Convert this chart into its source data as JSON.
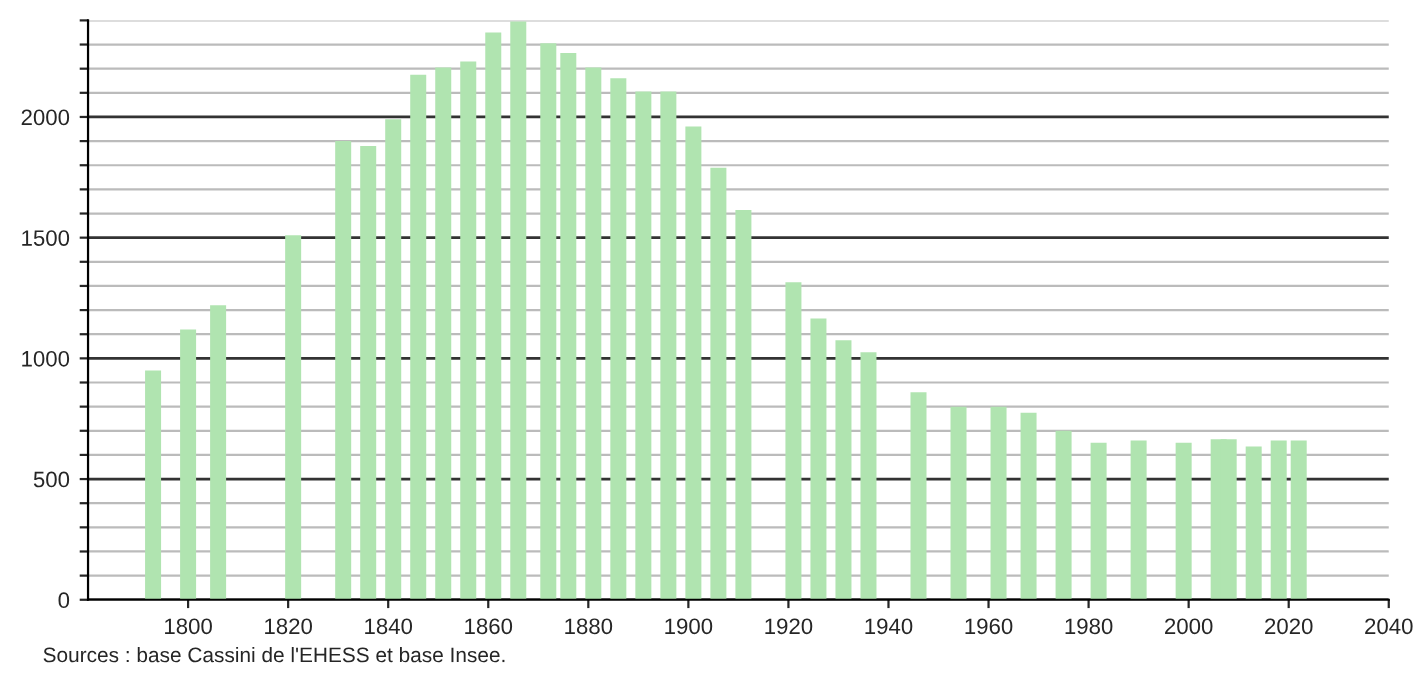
{
  "chart_data": {
    "type": "bar",
    "x": [
      1793,
      1800,
      1806,
      1821,
      1831,
      1836,
      1841,
      1846,
      1851,
      1856,
      1861,
      1866,
      1872,
      1876,
      1881,
      1886,
      1891,
      1896,
      1901,
      1906,
      1911,
      1921,
      1926,
      1931,
      1936,
      1946,
      1954,
      1962,
      1968,
      1975,
      1982,
      1990,
      1999,
      2006,
      2008,
      2013,
      2018,
      2022
    ],
    "series": [
      {
        "color": "#b0e4b0",
        "values": [
          950,
          1120,
          1220,
          1510,
          1900,
          1880,
          1990,
          2175,
          2205,
          2230,
          2350,
          2395,
          2305,
          2265,
          2205,
          2160,
          2105,
          2105,
          1960,
          1790,
          1615,
          1315,
          1165,
          1075,
          1025,
          860,
          800,
          800,
          775,
          700,
          650,
          660,
          650,
          665,
          665,
          635,
          660,
          660
        ]
      }
    ],
    "xlim": [
      1780,
      2040
    ],
    "xticks": [
      1800,
      1820,
      1840,
      1860,
      1880,
      1900,
      1920,
      1940,
      1960,
      1980,
      2000,
      2020,
      2040
    ],
    "ylim": [
      0,
      2400
    ],
    "yticks": [
      0,
      {
        "value": 100,
        "label": null
      },
      {
        "value": 200,
        "label": null
      },
      {
        "value": 300,
        "label": null
      },
      {
        "value": 400,
        "label": null
      },
      500,
      {
        "value": 600,
        "label": null
      },
      {
        "value": 700,
        "label": null
      },
      {
        "value": 800,
        "label": null
      },
      {
        "value": 900,
        "label": null
      },
      1000,
      {
        "value": 1100,
        "label": null
      },
      {
        "value": 1200,
        "label": null
      },
      {
        "value": 1300,
        "label": null
      },
      {
        "value": 1400,
        "label": null
      },
      1500,
      {
        "value": 1600,
        "label": null
      },
      {
        "value": 1700,
        "label": null
      },
      {
        "value": 1800,
        "label": null
      },
      {
        "value": 1900,
        "label": null
      },
      2000,
      {
        "value": 2100,
        "label": null
      },
      {
        "value": 2200,
        "label": null
      },
      {
        "value": 2300,
        "label": null
      },
      {
        "value": 2400,
        "label": null
      }
    ],
    "grid": "y",
    "annotations": [
      "Sources : base Cassini de l'EHESS et base Insee."
    ]
  }
}
